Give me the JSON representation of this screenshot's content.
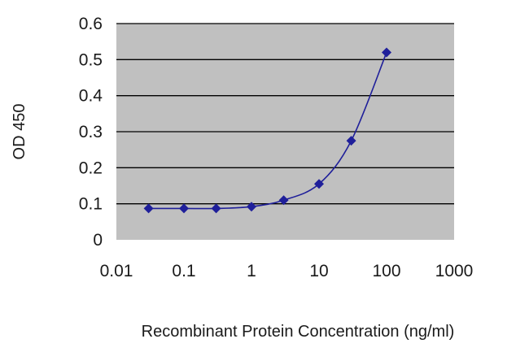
{
  "chart_data": {
    "type": "line",
    "title": "",
    "xlabel": "Recombinant Protein Concentration (ng/ml)",
    "ylabel": "OD 450",
    "x_scale": "log",
    "xlim": [
      0.01,
      1000
    ],
    "ylim": [
      0,
      0.6
    ],
    "x_ticks": [
      0.01,
      0.1,
      1,
      10,
      100,
      1000
    ],
    "x_tick_labels": [
      "0.01",
      "0.1",
      "1",
      "10",
      "100",
      "1000"
    ],
    "y_ticks": [
      0,
      0.1,
      0.2,
      0.3,
      0.4,
      0.5,
      0.6
    ],
    "y_tick_labels": [
      "0",
      "0.1",
      "0.2",
      "0.3",
      "0.4",
      "0.5",
      "0.6"
    ],
    "grid": "horizontal",
    "legend": "none",
    "series": [
      {
        "x": [
          0.03,
          0.1,
          0.3,
          1,
          3,
          10,
          30,
          100
        ],
        "y": [
          0.087,
          0.087,
          0.087,
          0.092,
          0.11,
          0.155,
          0.275,
          0.52
        ],
        "color": "#1f1f9a",
        "marker": "diamond"
      }
    ],
    "colors": {
      "plot_background": "#c0c0c0",
      "grid": "#000000",
      "series": "#1f1f9a"
    }
  }
}
